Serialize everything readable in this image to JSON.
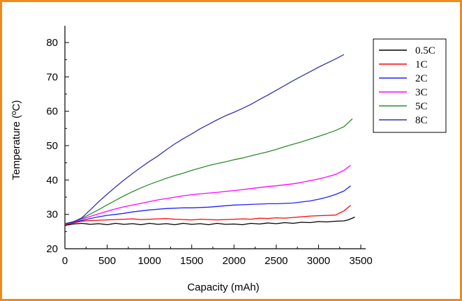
{
  "chart_data": {
    "type": "line",
    "xlabel": "Capacity (mAh)",
    "ylabel": "Temperature (ºC)",
    "xlim": [
      0,
      3600
    ],
    "ylim": [
      20,
      85
    ],
    "xticks": [
      0,
      500,
      1000,
      1500,
      2000,
      2500,
      3000,
      3500
    ],
    "yticks": [
      20,
      30,
      40,
      50,
      60,
      70,
      80
    ],
    "grid": false,
    "legend_position": "top-right",
    "frame_color": "#f08a1c",
    "series": [
      {
        "name": "0.5C",
        "color": "#000000",
        "x": [
          0,
          100,
          200,
          300,
          400,
          500,
          600,
          700,
          800,
          900,
          1000,
          1100,
          1200,
          1300,
          1400,
          1500,
          1600,
          1700,
          1800,
          1900,
          2000,
          2100,
          2200,
          2300,
          2400,
          2500,
          2600,
          2700,
          2800,
          2900,
          3000,
          3100,
          3200,
          3300,
          3350,
          3430
        ],
        "y": [
          26.8,
          27.2,
          27.4,
          27.1,
          27.3,
          27.0,
          27.4,
          27.1,
          27.3,
          27.0,
          27.4,
          27.1,
          27.3,
          27.0,
          27.4,
          27.1,
          27.3,
          27.0,
          27.4,
          27.1,
          27.2,
          27.0,
          27.4,
          27.2,
          27.5,
          27.3,
          27.6,
          27.4,
          27.7,
          27.6,
          27.9,
          27.8,
          28.0,
          28.1,
          28.4,
          29.2
        ]
      },
      {
        "name": "1C",
        "color": "#ff0000",
        "x": [
          0,
          100,
          200,
          300,
          400,
          500,
          600,
          700,
          800,
          900,
          1000,
          1100,
          1200,
          1300,
          1400,
          1500,
          1600,
          1700,
          1800,
          1900,
          2000,
          2100,
          2200,
          2300,
          2400,
          2500,
          2600,
          2700,
          2800,
          2900,
          3000,
          3100,
          3200,
          3300,
          3380
        ],
        "y": [
          27.0,
          27.5,
          28.0,
          28.2,
          28.3,
          28.4,
          28.5,
          28.6,
          28.7,
          28.5,
          28.6,
          28.7,
          28.8,
          28.6,
          28.5,
          28.4,
          28.6,
          28.5,
          28.4,
          28.5,
          28.6,
          28.7,
          28.6,
          28.9,
          28.8,
          29.0,
          28.9,
          29.1,
          29.3,
          29.5,
          29.6,
          29.7,
          29.8,
          31.0,
          32.6
        ]
      },
      {
        "name": "2C",
        "color": "#2020ff",
        "x": [
          0,
          100,
          200,
          300,
          400,
          500,
          600,
          700,
          800,
          900,
          1000,
          1100,
          1200,
          1300,
          1400,
          1500,
          1600,
          1700,
          1800,
          1900,
          2000,
          2100,
          2200,
          2300,
          2400,
          2500,
          2600,
          2700,
          2800,
          2900,
          3000,
          3100,
          3200,
          3300,
          3380
        ],
        "y": [
          27.2,
          27.7,
          28.2,
          28.8,
          29.3,
          29.7,
          30.0,
          30.3,
          30.7,
          31.0,
          31.3,
          31.5,
          31.7,
          31.8,
          31.9,
          31.9,
          32.0,
          32.1,
          32.3,
          32.5,
          32.7,
          32.8,
          32.9,
          33.0,
          33.1,
          33.1,
          33.2,
          33.3,
          33.6,
          33.9,
          34.4,
          35.0,
          35.8,
          36.8,
          38.3
        ]
      },
      {
        "name": "3C",
        "color": "#ff00ff",
        "x": [
          0,
          100,
          200,
          300,
          400,
          500,
          600,
          700,
          800,
          900,
          1000,
          1100,
          1200,
          1300,
          1400,
          1500,
          1600,
          1700,
          1800,
          1900,
          2000,
          2100,
          2200,
          2300,
          2400,
          2500,
          2600,
          2700,
          2800,
          2900,
          3000,
          3100,
          3200,
          3300,
          3380
        ],
        "y": [
          27.2,
          27.8,
          28.6,
          29.4,
          30.2,
          30.9,
          31.6,
          32.2,
          32.7,
          33.2,
          33.7,
          34.2,
          34.6,
          35.0,
          35.4,
          35.7,
          36.0,
          36.2,
          36.4,
          36.7,
          36.9,
          37.2,
          37.5,
          37.8,
          38.1,
          38.3,
          38.6,
          38.9,
          39.3,
          39.8,
          40.3,
          40.9,
          41.6,
          42.8,
          44.3
        ]
      },
      {
        "name": "5C",
        "color": "#2e8b2e",
        "x": [
          0,
          100,
          200,
          300,
          400,
          500,
          600,
          700,
          800,
          900,
          1000,
          1100,
          1200,
          1300,
          1400,
          1500,
          1600,
          1700,
          1800,
          1900,
          2000,
          2100,
          2200,
          2300,
          2400,
          2500,
          2600,
          2700,
          2800,
          2900,
          3000,
          3100,
          3200,
          3300,
          3400
        ],
        "y": [
          27.3,
          27.9,
          28.8,
          30.1,
          31.4,
          32.8,
          34.1,
          35.4,
          36.6,
          37.7,
          38.7,
          39.6,
          40.5,
          41.3,
          42.0,
          42.8,
          43.5,
          44.2,
          44.8,
          45.3,
          45.9,
          46.4,
          47.0,
          47.6,
          48.2,
          48.9,
          49.7,
          50.4,
          51.1,
          51.9,
          52.7,
          53.5,
          54.4,
          55.5,
          57.8
        ]
      },
      {
        "name": "8C",
        "color": "#3333aa",
        "x": [
          0,
          100,
          200,
          300,
          400,
          500,
          600,
          700,
          800,
          900,
          1000,
          1100,
          1200,
          1300,
          1400,
          1500,
          1600,
          1700,
          1800,
          1900,
          2000,
          2100,
          2200,
          2300,
          2400,
          2500,
          2600,
          2700,
          2800,
          2900,
          3000,
          3100,
          3200,
          3300
        ],
        "y": [
          27.3,
          27.8,
          29.0,
          31.3,
          33.7,
          35.9,
          38.0,
          40.0,
          41.9,
          43.7,
          45.4,
          47.0,
          48.8,
          50.5,
          52.0,
          53.4,
          54.9,
          56.2,
          57.5,
          58.7,
          59.7,
          60.8,
          62.0,
          63.4,
          64.7,
          66.1,
          67.5,
          68.9,
          70.2,
          71.5,
          72.8,
          74.0,
          75.2,
          76.5
        ]
      }
    ]
  }
}
